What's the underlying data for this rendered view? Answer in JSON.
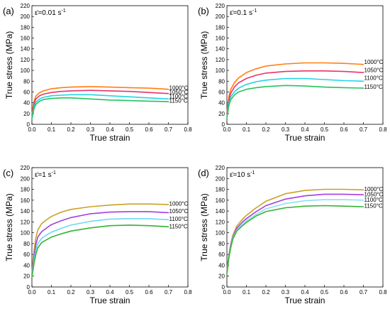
{
  "figure": {
    "title": "",
    "panels_count": 4
  },
  "chart_data": [
    {
      "type": "line",
      "panel_label": "(a)",
      "strain_rate_label": "ε̇=0.01 s",
      "strain_rate_exponent": "-1",
      "xlabel": "True strain",
      "ylabel": "True stress (MPa)",
      "xlim": [
        0.0,
        0.8
      ],
      "ylim": [
        0,
        220
      ],
      "xticks": [
        "0.0",
        "0.1",
        "0.2",
        "0.3",
        "0.4",
        "0.5",
        "0.6",
        "0.7",
        "0.8"
      ],
      "yticks": [
        "0",
        "20",
        "40",
        "60",
        "80",
        "100",
        "120",
        "140",
        "160",
        "180",
        "200",
        "220"
      ],
      "grid": false,
      "series": [
        {
          "name": "1000°C",
          "color": "#ff7f0e",
          "x": [
            0,
            0.01,
            0.02,
            0.04,
            0.06,
            0.1,
            0.15,
            0.2,
            0.3,
            0.4,
            0.5,
            0.6,
            0.7
          ],
          "y": [
            18,
            42,
            52,
            59,
            62,
            66,
            68,
            69,
            70,
            69,
            68,
            67,
            65
          ]
        },
        {
          "name": "1050°C",
          "color": "#e8336b",
          "x": [
            0,
            0.01,
            0.02,
            0.04,
            0.06,
            0.1,
            0.15,
            0.2,
            0.3,
            0.4,
            0.5,
            0.6,
            0.7
          ],
          "y": [
            15,
            38,
            47,
            53,
            56,
            59,
            61,
            62,
            63,
            62,
            61,
            59,
            57
          ]
        },
        {
          "name": "1100°C",
          "color": "#22d3e6",
          "x": [
            0,
            0.01,
            0.02,
            0.04,
            0.06,
            0.1,
            0.15,
            0.2,
            0.3,
            0.4,
            0.5,
            0.6,
            0.7
          ],
          "y": [
            12,
            32,
            41,
            47,
            50,
            53,
            54,
            55,
            55,
            53,
            51,
            49,
            47
          ]
        },
        {
          "name": "1150°C",
          "color": "#22c55e",
          "x": [
            0,
            0.01,
            0.02,
            0.04,
            0.06,
            0.1,
            0.15,
            0.2,
            0.3,
            0.4,
            0.5,
            0.6,
            0.7
          ],
          "y": [
            10,
            28,
            37,
            43,
            46,
            48,
            49,
            49,
            47,
            45,
            44,
            43,
            42
          ]
        }
      ]
    },
    {
      "type": "line",
      "panel_label": "(b)",
      "strain_rate_label": "ε̇=0.1 s",
      "strain_rate_exponent": "-1",
      "xlabel": "True strain",
      "ylabel": "True stress (MPa)",
      "xlim": [
        0.0,
        0.8
      ],
      "ylim": [
        0,
        220
      ],
      "xticks": [
        "0.0",
        "0.1",
        "0.2",
        "0.3",
        "0.4",
        "0.5",
        "0.6",
        "0.7",
        "0.8"
      ],
      "yticks": [
        "0",
        "20",
        "40",
        "60",
        "80",
        "100",
        "120",
        "140",
        "160",
        "180",
        "200",
        "220"
      ],
      "grid": false,
      "series": [
        {
          "name": "1000°C",
          "color": "#ff7f0e",
          "x": [
            0,
            0.01,
            0.02,
            0.04,
            0.06,
            0.1,
            0.15,
            0.2,
            0.3,
            0.4,
            0.5,
            0.6,
            0.7
          ],
          "y": [
            20,
            52,
            65,
            78,
            86,
            96,
            103,
            108,
            112,
            114,
            114,
            113,
            111
          ]
        },
        {
          "name": "1050°C",
          "color": "#e8336b",
          "x": [
            0,
            0.01,
            0.02,
            0.04,
            0.06,
            0.1,
            0.15,
            0.2,
            0.3,
            0.4,
            0.5,
            0.6,
            0.7
          ],
          "y": [
            18,
            46,
            58,
            70,
            77,
            85,
            91,
            95,
            98,
            99,
            99,
            98,
            96
          ]
        },
        {
          "name": "1100°C",
          "color": "#22d3e6",
          "x": [
            0,
            0.01,
            0.02,
            0.04,
            0.06,
            0.1,
            0.15,
            0.2,
            0.3,
            0.4,
            0.5,
            0.6,
            0.7
          ],
          "y": [
            15,
            40,
            51,
            61,
            67,
            74,
            79,
            82,
            85,
            85,
            83,
            81,
            80
          ]
        },
        {
          "name": "1150°C",
          "color": "#22c55e",
          "x": [
            0,
            0.01,
            0.02,
            0.04,
            0.06,
            0.1,
            0.15,
            0.2,
            0.3,
            0.4,
            0.5,
            0.6,
            0.7
          ],
          "y": [
            12,
            35,
            46,
            55,
            60,
            65,
            68,
            70,
            72,
            71,
            69,
            68,
            67
          ]
        }
      ]
    },
    {
      "type": "line",
      "panel_label": "(c)",
      "strain_rate_label": "ε̇=1 s",
      "strain_rate_exponent": "-1",
      "xlabel": "True strain",
      "ylabel": "True stress (MPa)",
      "xlim": [
        0.0,
        0.8
      ],
      "ylim": [
        0,
        220
      ],
      "xticks": [
        "0.0",
        "0.1",
        "0.2",
        "0.3",
        "0.4",
        "0.5",
        "0.6",
        "0.7",
        "0.8"
      ],
      "yticks": [
        "0",
        "20",
        "40",
        "60",
        "80",
        "100",
        "120",
        "140",
        "160",
        "180",
        "200",
        "220"
      ],
      "grid": false,
      "series": [
        {
          "name": "1000°C",
          "color": "#c9a227",
          "x": [
            0,
            0.01,
            0.02,
            0.03,
            0.05,
            0.08,
            0.1,
            0.15,
            0.2,
            0.3,
            0.4,
            0.5,
            0.6,
            0.7
          ],
          "y": [
            25,
            65,
            90,
            105,
            117,
            125,
            130,
            138,
            143,
            148,
            151,
            153,
            153,
            152
          ]
        },
        {
          "name": "1050°C",
          "color": "#a43ee0",
          "x": [
            0,
            0.01,
            0.02,
            0.03,
            0.05,
            0.08,
            0.1,
            0.15,
            0.2,
            0.3,
            0.4,
            0.5,
            0.6,
            0.7
          ],
          "y": [
            22,
            55,
            78,
            92,
            102,
            110,
            115,
            122,
            128,
            135,
            138,
            139,
            139,
            137
          ]
        },
        {
          "name": "1100°C",
          "color": "#6fd6f2",
          "x": [
            0,
            0.01,
            0.02,
            0.03,
            0.05,
            0.08,
            0.1,
            0.15,
            0.2,
            0.3,
            0.4,
            0.5,
            0.6,
            0.7
          ],
          "y": [
            20,
            48,
            68,
            80,
            90,
            97,
            101,
            108,
            114,
            121,
            125,
            126,
            126,
            124
          ]
        },
        {
          "name": "1150°C",
          "color": "#34b233",
          "x": [
            0,
            0.01,
            0.02,
            0.03,
            0.05,
            0.08,
            0.1,
            0.15,
            0.2,
            0.3,
            0.4,
            0.5,
            0.6,
            0.7
          ],
          "y": [
            18,
            42,
            60,
            72,
            82,
            88,
            92,
            98,
            103,
            109,
            113,
            114,
            113,
            111
          ]
        }
      ]
    },
    {
      "type": "line",
      "panel_label": "(d)",
      "strain_rate_label": "ε̇=10 s",
      "strain_rate_exponent": "-1",
      "xlabel": "True strain",
      "ylabel": "True stress (MPa)",
      "xlim": [
        0.0,
        0.8
      ],
      "ylim": [
        0,
        220
      ],
      "xticks": [
        "0.0",
        "0.1",
        "0.2",
        "0.3",
        "0.4",
        "0.5",
        "0.6",
        "0.7",
        "0.8"
      ],
      "yticks": [
        "0",
        "20",
        "40",
        "60",
        "80",
        "100",
        "120",
        "140",
        "160",
        "180",
        "200",
        "220"
      ],
      "grid": false,
      "series": [
        {
          "name": "1000°C",
          "color": "#c9a227",
          "x": [
            0,
            0.01,
            0.02,
            0.03,
            0.05,
            0.08,
            0.1,
            0.15,
            0.2,
            0.3,
            0.4,
            0.5,
            0.6,
            0.7
          ],
          "y": [
            30,
            60,
            80,
            95,
            112,
            125,
            132,
            146,
            158,
            172,
            178,
            180,
            180,
            179
          ]
        },
        {
          "name": "1050°C",
          "color": "#a43ee0",
          "x": [
            0,
            0.01,
            0.02,
            0.03,
            0.05,
            0.08,
            0.1,
            0.15,
            0.2,
            0.3,
            0.4,
            0.5,
            0.6,
            0.7
          ],
          "y": [
            28,
            58,
            78,
            92,
            108,
            120,
            126,
            139,
            150,
            162,
            168,
            171,
            171,
            170
          ]
        },
        {
          "name": "1100°C",
          "color": "#8ee0ef",
          "x": [
            0,
            0.01,
            0.02,
            0.03,
            0.05,
            0.08,
            0.1,
            0.15,
            0.2,
            0.3,
            0.4,
            0.5,
            0.6,
            0.7
          ],
          "y": [
            26,
            56,
            75,
            90,
            105,
            116,
            122,
            134,
            144,
            154,
            159,
            161,
            161,
            160
          ]
        },
        {
          "name": "1150°C",
          "color": "#34b233",
          "x": [
            0,
            0.01,
            0.02,
            0.03,
            0.05,
            0.08,
            0.1,
            0.15,
            0.2,
            0.3,
            0.4,
            0.5,
            0.6,
            0.7
          ],
          "y": [
            24,
            54,
            73,
            88,
            103,
            113,
            119,
            131,
            139,
            146,
            149,
            150,
            149,
            148
          ]
        }
      ]
    }
  ]
}
